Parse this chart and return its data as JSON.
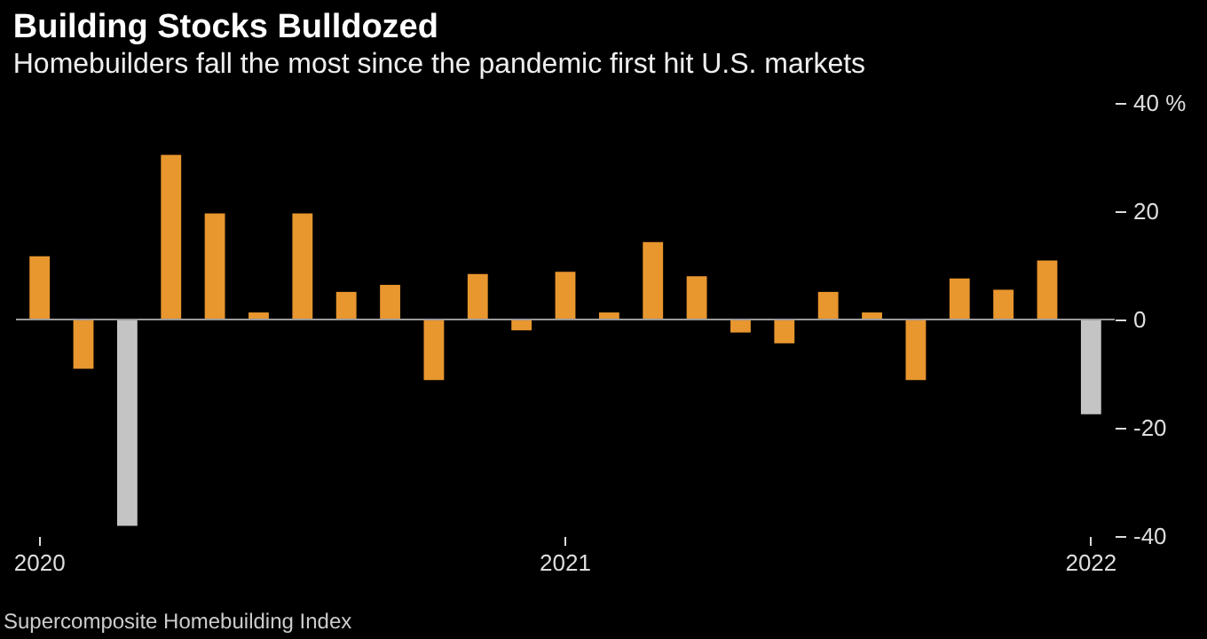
{
  "chart_data": {
    "type": "bar",
    "title": "Building Stocks Bulldozed",
    "subtitle": "Homebuilders fall the most since the pandemic first hit U.S. markets",
    "categories": [
      "2020",
      null,
      null,
      null,
      null,
      null,
      null,
      null,
      null,
      null,
      null,
      null,
      "2021",
      null,
      null,
      null,
      null,
      null,
      null,
      null,
      null,
      null,
      null,
      null,
      "2022"
    ],
    "values": [
      11.7,
      -9.1,
      -38.1,
      30.4,
      19.6,
      1.3,
      19.6,
      5.1,
      6.4,
      -11.2,
      8.4,
      -2.0,
      8.8,
      1.3,
      14.3,
      8.0,
      -2.4,
      -4.4,
      5.1,
      1.3,
      -11.2,
      7.6,
      5.5,
      10.9,
      -17.5
    ],
    "colors": [
      "#e8962e",
      "#e8962e",
      "#c4c4c4",
      "#e8962e",
      "#e8962e",
      "#e8962e",
      "#e8962e",
      "#e8962e",
      "#e8962e",
      "#e8962e",
      "#e8962e",
      "#e8962e",
      "#e8962e",
      "#e8962e",
      "#e8962e",
      "#e8962e",
      "#e8962e",
      "#e8962e",
      "#e8962e",
      "#e8962e",
      "#e8962e",
      "#e8962e",
      "#e8962e",
      "#e8962e",
      "#c4c4c4"
    ],
    "ylim": [
      -40,
      40
    ],
    "yticks": [
      {
        "value": 40,
        "label": "40 %"
      },
      20,
      0,
      -20,
      -40
    ],
    "ref_lines": [
      {
        "axis": "y",
        "value": 0,
        "color": "#9a9a9a"
      }
    ],
    "annotations": [
      "Supercomposite Homebuilding Index"
    ],
    "grid": false
  }
}
